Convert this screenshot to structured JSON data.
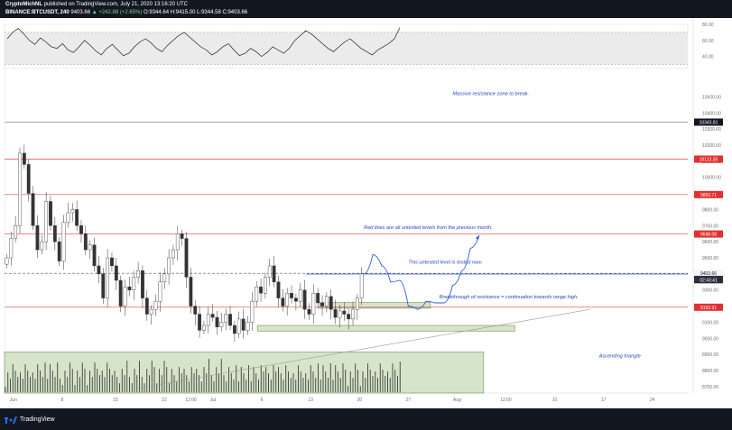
{
  "header": {
    "publisher": "CryptoMichNL",
    "published": "published on TradingView.com, July 21, 2020 13:16:20 UTC",
    "symbol": "BINANCE:BTCUSDT, 240",
    "price": "9403.66",
    "change": "▲ +242.88 (+2.65%)",
    "ohlc": "O:9344.64 H:9415.00 L:9344.58 C:9403.66"
  },
  "footer": {
    "brand": "TradingView",
    "logo_icon": "tradingview-logo-icon"
  },
  "chart_data": [
    {
      "type": "line",
      "panel": "oscillator",
      "ylim": [
        25,
        80
      ],
      "tick_values": [
        80,
        60,
        40
      ],
      "tick_labels": [
        "80.00",
        "60.00",
        "40.00"
      ],
      "band": [
        30,
        70
      ],
      "x": [
        0,
        1,
        2,
        3,
        4,
        5,
        6,
        7,
        8,
        9,
        10,
        11,
        12,
        13,
        14,
        15,
        16,
        17,
        18,
        19,
        20,
        21,
        22,
        23,
        24,
        25,
        26,
        27,
        28,
        29,
        30,
        31,
        32,
        33,
        34,
        35,
        36,
        37,
        38,
        39,
        40,
        41,
        42,
        43,
        44,
        45,
        46,
        47,
        48,
        49,
        50,
        51,
        52,
        53,
        54,
        55,
        56,
        57,
        58,
        59,
        60,
        61,
        62,
        63,
        64,
        65,
        66,
        67,
        68,
        69,
        70,
        71
      ],
      "values": [
        62,
        70,
        75,
        68,
        60,
        55,
        63,
        58,
        52,
        50,
        56,
        48,
        45,
        52,
        60,
        54,
        47,
        42,
        50,
        55,
        48,
        41,
        44,
        52,
        58,
        62,
        57,
        50,
        46,
        54,
        60,
        66,
        70,
        64,
        58,
        52,
        48,
        42,
        46,
        52,
        56,
        48,
        41,
        44,
        50,
        46,
        40,
        45,
        52,
        48,
        44,
        50,
        60,
        66,
        72,
        68,
        62,
        56,
        50,
        46,
        52,
        58,
        62,
        56,
        50,
        46,
        42,
        48,
        52,
        56,
        62,
        76
      ],
      "line_color": "#222222"
    },
    {
      "type": "candlestick",
      "panel": "price",
      "ylim": [
        8660,
        10620
      ],
      "tick_values": [
        10500,
        10400,
        10300,
        10200,
        10100,
        10000,
        9900,
        9800,
        9700,
        9600,
        9500,
        9400,
        9300,
        9200,
        9100,
        9000,
        8900,
        8800,
        8700
      ],
      "tick_labels": [
        "10500.00",
        "10400.00",
        "10300.00",
        "10200.00",
        "10100.00",
        "10000.00",
        "9900.00",
        "9800.00",
        "9700.00",
        "9600.00",
        "9500.00",
        "9400.00",
        "9300.00",
        "9200.00",
        "9100.00",
        "9000.00",
        "8900.00",
        "8800.00",
        "8700.00"
      ],
      "x_tick_labels": [
        "Jun",
        "8",
        "15",
        "22",
        "12:00",
        "Jul",
        "6",
        "13",
        "20",
        "27",
        "Aug",
        "12:00",
        "10",
        "17",
        "24"
      ],
      "x_tick_pos": [
        2,
        13,
        25,
        36,
        42,
        47,
        58,
        69,
        80,
        91,
        102,
        113,
        124,
        135,
        146
      ],
      "x_range": [
        0,
        154
      ],
      "closes": [
        9500,
        9620,
        9700,
        10150,
        10080,
        9900,
        9700,
        9550,
        9600,
        9850,
        9700,
        9600,
        9480,
        9720,
        9780,
        9800,
        9700,
        9650,
        9550,
        9580,
        9450,
        9400,
        9250,
        9500,
        9450,
        9360,
        9200,
        9320,
        9300,
        9380,
        9420,
        9250,
        9150,
        9180,
        9230,
        9350,
        9400,
        9500,
        9550,
        9650,
        9620,
        9380,
        9200,
        9150,
        9050,
        9080,
        9150,
        9130,
        9070,
        9100,
        9150,
        9080,
        9030,
        9120,
        9050,
        9100,
        9230,
        9320,
        9280,
        9380,
        9450,
        9350,
        9250,
        9200,
        9280,
        9250,
        9230,
        9300,
        9180,
        9150,
        9280,
        9220,
        9200,
        9260,
        9180,
        9130,
        9170,
        9150,
        9120,
        9180,
        9250,
        9400
      ],
      "horizontal_levels": [
        {
          "value": 10343,
          "label": "10343.81",
          "color": "#888888",
          "badge": "#131722"
        },
        {
          "value": 10113,
          "label": "10113.35",
          "color": "#e04040",
          "badge": "#e03030"
        },
        {
          "value": 9893,
          "label": "9893.71",
          "color": "#e04040",
          "badge": "#e03030"
        },
        {
          "value": 9648,
          "label": "9648.08",
          "color": "#e04040",
          "badge": "#e03030"
        },
        {
          "value": 9403.66,
          "label": "9403.66",
          "color": "#555555",
          "badge": "#f5f5f5"
        },
        {
          "value": 9193,
          "label": "9193.91",
          "color": "#e04040",
          "badge": "#e03030"
        }
      ],
      "current_price_badge": {
        "value": 9375,
        "label": "02:43:41",
        "badge": "#2a2e39"
      },
      "blue_level": {
        "value": 9399.41,
        "label": "9399.41",
        "badge": "#2345c8"
      },
      "zones": [
        {
          "from_x": 0,
          "to_x": 108,
          "from_y": 8660,
          "to_y": 8915
        },
        {
          "from_x": 71,
          "to_x": 96,
          "from_y": 9187,
          "to_y": 9222
        },
        {
          "from_x": 57,
          "to_x": 115,
          "from_y": 9045,
          "to_y": 9080
        }
      ],
      "projection_path": [
        [
          81,
          9400
        ],
        [
          83,
          9520
        ],
        [
          85,
          9450
        ],
        [
          87,
          9350
        ],
        [
          89,
          9360
        ],
        [
          91,
          9200
        ],
        [
          93,
          9180
        ],
        [
          95,
          9230
        ],
        [
          97,
          9220
        ],
        [
          99,
          9220
        ],
        [
          101,
          9330
        ],
        [
          103,
          9420
        ],
        [
          105,
          9560
        ],
        [
          107,
          9640
        ]
      ],
      "annotations": [
        {
          "text": "Massive resistance zone to break.",
          "x": 101,
          "y": 10510
        },
        {
          "text": "Red lines are all untested levels from the previous month.",
          "x": 81,
          "y": 9680
        },
        {
          "text": "This untested level is tested now.",
          "x": 91,
          "y": 9465
        },
        {
          "text": "Breakthrough of resistance = continuation towards range high.",
          "x": 98,
          "y": 9247
        },
        {
          "text": "Ascending triangle",
          "x": 134,
          "y": 8880
        }
      ]
    }
  ]
}
